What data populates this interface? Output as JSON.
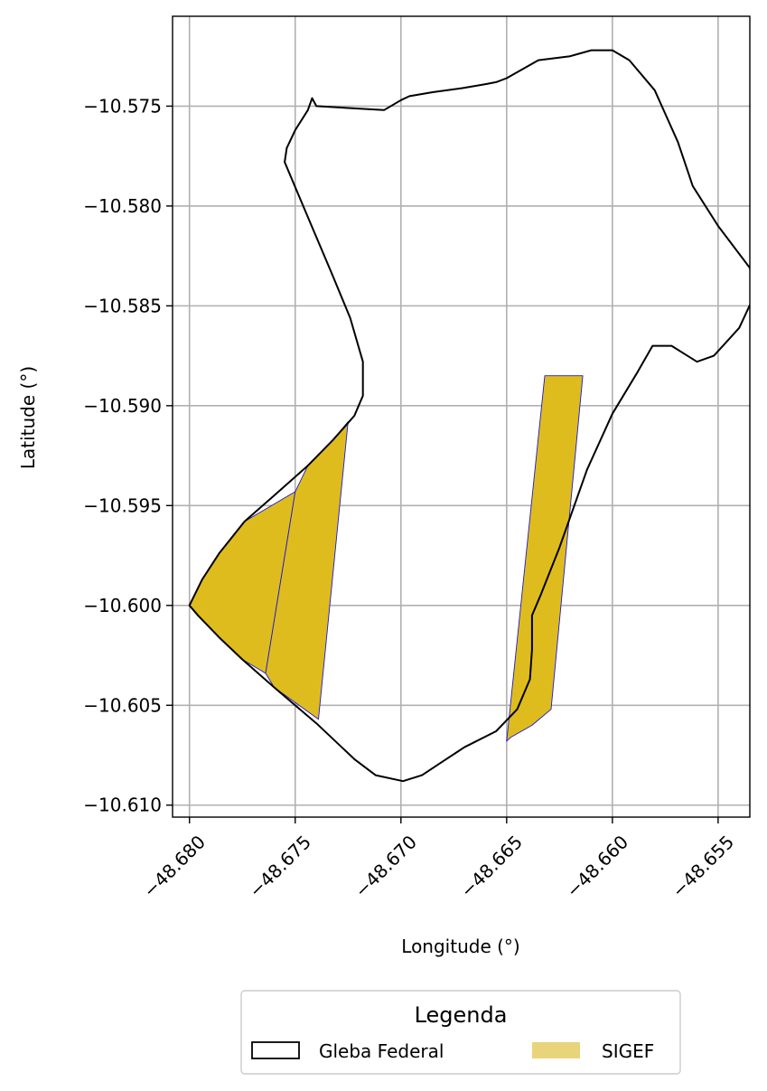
{
  "chart_data": {
    "type": "map",
    "xlabel": "Longitude (°)",
    "ylabel": "Latitude (°)",
    "xlim": [
      -48.6808,
      -48.6535
    ],
    "ylim": [
      -10.6106,
      -10.5705
    ],
    "xticks": [
      -48.68,
      -48.675,
      -48.67,
      -48.665,
      -48.66,
      -48.655
    ],
    "xtick_labels": [
      "−48.680",
      "−48.675",
      "−48.670",
      "−48.665",
      "−48.660",
      "−48.655"
    ],
    "yticks": [
      -10.575,
      -10.58,
      -10.585,
      -10.59,
      -10.595,
      -10.6,
      -10.605,
      -10.61
    ],
    "ytick_labels": [
      "−10.575",
      "−10.580",
      "−10.585",
      "−10.590",
      "−10.595",
      "−10.600",
      "−10.605",
      "−10.610"
    ],
    "grid": true,
    "legend": {
      "title": "Legenda",
      "placement": "below",
      "entries": [
        {
          "label": "Gleba Federal",
          "style": "outline",
          "color": "#000000"
        },
        {
          "label": "SIGEF",
          "style": "fill",
          "color": "#e8d47a"
        }
      ]
    },
    "series": [
      {
        "name": "Gleba Federal",
        "kind": "outline",
        "color": "#000000",
        "coordinates": [
          [
            -48.67,
            -10.5747
          ],
          [
            -48.6696,
            -10.5745
          ],
          [
            -48.6685,
            -10.5743
          ],
          [
            -48.6671,
            -10.5741
          ],
          [
            -48.666,
            -10.5739
          ],
          [
            -48.6655,
            -10.5738
          ],
          [
            -48.665,
            -10.5736
          ],
          [
            -48.6645,
            -10.5733
          ],
          [
            -48.6635,
            -10.5727
          ],
          [
            -48.662,
            -10.5725
          ],
          [
            -48.661,
            -10.5722
          ],
          [
            -48.66,
            -10.5722
          ],
          [
            -48.6592,
            -10.5727
          ],
          [
            -48.658,
            -10.5742
          ],
          [
            -48.6569,
            -10.5768
          ],
          [
            -48.6562,
            -10.579
          ],
          [
            -48.655,
            -10.581
          ],
          [
            -48.6535,
            -10.5831
          ],
          [
            -48.6533,
            -10.5845
          ],
          [
            -48.654,
            -10.5861
          ],
          [
            -48.6552,
            -10.5875
          ],
          [
            -48.656,
            -10.5878
          ],
          [
            -48.6572,
            -10.587
          ],
          [
            -48.6581,
            -10.587
          ],
          [
            -48.6588,
            -10.5883
          ],
          [
            -48.66,
            -10.5904
          ],
          [
            -48.6612,
            -10.5932
          ],
          [
            -48.6625,
            -10.5971
          ],
          [
            -48.6634,
            -10.5995
          ],
          [
            -48.6638,
            -10.6005
          ],
          [
            -48.6638,
            -10.6022
          ],
          [
            -48.6639,
            -10.6037
          ],
          [
            -48.6645,
            -10.6052
          ],
          [
            -48.6655,
            -10.6063
          ],
          [
            -48.667,
            -10.6071
          ],
          [
            -48.668,
            -10.6078
          ],
          [
            -48.669,
            -10.6085
          ],
          [
            -48.6699,
            -10.6088
          ],
          [
            -48.6712,
            -10.6085
          ],
          [
            -48.6722,
            -10.6077
          ],
          [
            -48.674,
            -10.6059
          ],
          [
            -48.676,
            -10.6041
          ],
          [
            -48.6775,
            -10.6027
          ],
          [
            -48.6786,
            -10.6016
          ],
          [
            -48.6796,
            -10.6005
          ],
          [
            -48.68,
            -10.6
          ],
          [
            -48.6794,
            -10.5987
          ],
          [
            -48.6786,
            -10.5974
          ],
          [
            -48.6774,
            -10.5958
          ],
          [
            -48.676,
            -10.5945
          ],
          [
            -48.6744,
            -10.593
          ],
          [
            -48.6732,
            -10.5917
          ],
          [
            -48.6722,
            -10.5905
          ],
          [
            -48.6718,
            -10.5895
          ],
          [
            -48.6718,
            -10.5878
          ],
          [
            -48.6724,
            -10.5856
          ],
          [
            -48.6733,
            -10.5833
          ],
          [
            -48.6743,
            -10.5808
          ],
          [
            -48.6751,
            -10.5788
          ],
          [
            -48.6755,
            -10.5778
          ],
          [
            -48.6754,
            -10.5771
          ],
          [
            -48.675,
            -10.5762
          ],
          [
            -48.6744,
            -10.5752
          ],
          [
            -48.6742,
            -10.5746
          ],
          [
            -48.674,
            -10.575
          ],
          [
            -48.6724,
            -10.5751
          ],
          [
            -48.6708,
            -10.5752
          ],
          [
            -48.67,
            -10.5747
          ]
        ]
      },
      {
        "name": "SIGEF",
        "kind": "fill",
        "color": "#e8d47a",
        "polygons": [
          {
            "id": "sigef-west-a",
            "coordinates": [
              [
                -48.68,
                -10.6
              ],
              [
                -48.6794,
                -10.5987
              ],
              [
                -48.6786,
                -10.5974
              ],
              [
                -48.6774,
                -10.5958
              ],
              [
                -48.675,
                -10.5943
              ],
              [
                -48.6764,
                -10.6034
              ],
              [
                -48.6775,
                -10.6027
              ],
              [
                -48.6786,
                -10.6016
              ],
              [
                -48.6796,
                -10.6005
              ]
            ]
          },
          {
            "id": "sigef-west-b",
            "coordinates": [
              [
                -48.675,
                -10.5943
              ],
              [
                -48.6744,
                -10.593
              ],
              [
                -48.6732,
                -10.5917
              ],
              [
                -48.6725,
                -10.5908
              ],
              [
                -48.6739,
                -10.6057
              ],
              [
                -48.676,
                -10.6041
              ],
              [
                -48.6764,
                -10.6034
              ]
            ]
          },
          {
            "id": "sigef-east",
            "coordinates": [
              [
                -48.6632,
                -10.5885
              ],
              [
                -48.6614,
                -10.5885
              ],
              [
                -48.6629,
                -10.6052
              ],
              [
                -48.6638,
                -10.606
              ],
              [
                -48.6648,
                -10.6066
              ],
              [
                -48.665,
                -10.6068
              ]
            ]
          }
        ]
      }
    ]
  },
  "colors": {
    "outline": "#000000",
    "fill": "#dfbc1e",
    "fill_edge": "#1a1acd",
    "grid": "#b0b0b0"
  }
}
